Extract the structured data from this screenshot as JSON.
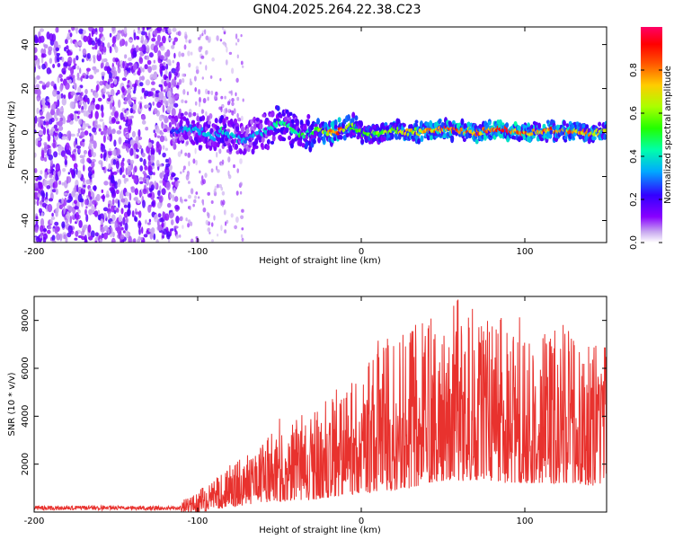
{
  "title": "GN04.2025.264.22.38.C23",
  "chart_data": [
    {
      "type": "heatmap",
      "xlabel": "Height of straight line (km)",
      "ylabel": "Frequency (Hz)",
      "xlim": [
        -200,
        150
      ],
      "ylim": [
        -50,
        48
      ],
      "xticks": [
        -200,
        -100,
        0,
        100
      ],
      "yticks": [
        -40,
        -20,
        0,
        20,
        40
      ],
      "colorbar": {
        "label": "Normalized spectral amplitude",
        "range": [
          0,
          1
        ],
        "ticks": [
          0.0,
          0.2,
          0.4,
          0.6,
          0.8
        ],
        "colors": [
          "#ffffff",
          "#c8a8f0",
          "#8800ff",
          "#3300ff",
          "#00aaff",
          "#00ffaa",
          "#22ff00",
          "#aaff00",
          "#ffcc00",
          "#ff5500",
          "#ff0000",
          "#ff0066"
        ]
      },
      "ridge": {
        "x": [
          -115,
          -105,
          -95,
          -90,
          -85,
          -80,
          -75,
          -70,
          -65,
          -60,
          -55,
          -50,
          -45,
          -40,
          -35,
          -30,
          -25,
          -20,
          -15,
          -10,
          -5,
          0,
          10,
          20,
          30,
          40,
          50,
          60,
          70,
          80,
          90,
          100,
          110,
          120,
          130,
          140,
          150
        ],
        "frequency": [
          0,
          2,
          0,
          -2,
          1,
          -1,
          -3,
          -4,
          -1,
          0,
          2,
          4,
          3,
          0,
          -1,
          0,
          1,
          0,
          0,
          2,
          3,
          0,
          -1,
          1,
          0,
          1,
          2,
          1,
          0,
          2,
          1,
          0,
          1,
          1,
          0,
          0,
          0
        ],
        "amplitude": [
          0.25,
          0.35,
          0.4,
          0.3,
          0.45,
          0.35,
          0.4,
          0.3,
          0.35,
          0.4,
          0.45,
          0.5,
          0.45,
          0.45,
          0.5,
          0.55,
          0.6,
          0.75,
          0.9,
          0.7,
          0.6,
          0.55,
          0.6,
          0.65,
          0.7,
          0.75,
          0.8,
          0.85,
          0.8,
          0.85,
          0.9,
          0.85,
          0.8,
          0.85,
          0.8,
          0.75,
          0.7
        ]
      }
    },
    {
      "type": "line",
      "xlabel": "Height of straight line (km)",
      "ylabel": "SNR (10 * v/v)",
      "xlim": [
        -200,
        150
      ],
      "ylim": [
        0,
        9000
      ],
      "xticks": [
        -200,
        -100,
        0,
        100
      ],
      "yticks": [
        2000,
        4000,
        6000,
        8000
      ],
      "color": "#e8322e",
      "envelope": {
        "x": [
          -200,
          -120,
          -110,
          -100,
          -90,
          -80,
          -70,
          -60,
          -50,
          -40,
          -30,
          -20,
          -10,
          0,
          10,
          20,
          30,
          40,
          50,
          60,
          70,
          80,
          90,
          100,
          110,
          120,
          130,
          140,
          150
        ],
        "low": [
          0,
          0,
          0,
          0,
          100,
          200,
          300,
          400,
          400,
          500,
          500,
          600,
          700,
          800,
          800,
          900,
          1000,
          1200,
          1300,
          1300,
          1300,
          1300,
          1200,
          1200,
          1200,
          1200,
          1200,
          1100,
          1100
        ],
        "high": [
          300,
          350,
          450,
          900,
          1400,
          2000,
          2400,
          2900,
          3900,
          4400,
          4200,
          4900,
          5400,
          6000,
          7600,
          7200,
          7900,
          8300,
          8600,
          9000,
          8400,
          7900,
          8300,
          8200,
          7400,
          8100,
          7600,
          7300,
          6900
        ]
      }
    }
  ]
}
